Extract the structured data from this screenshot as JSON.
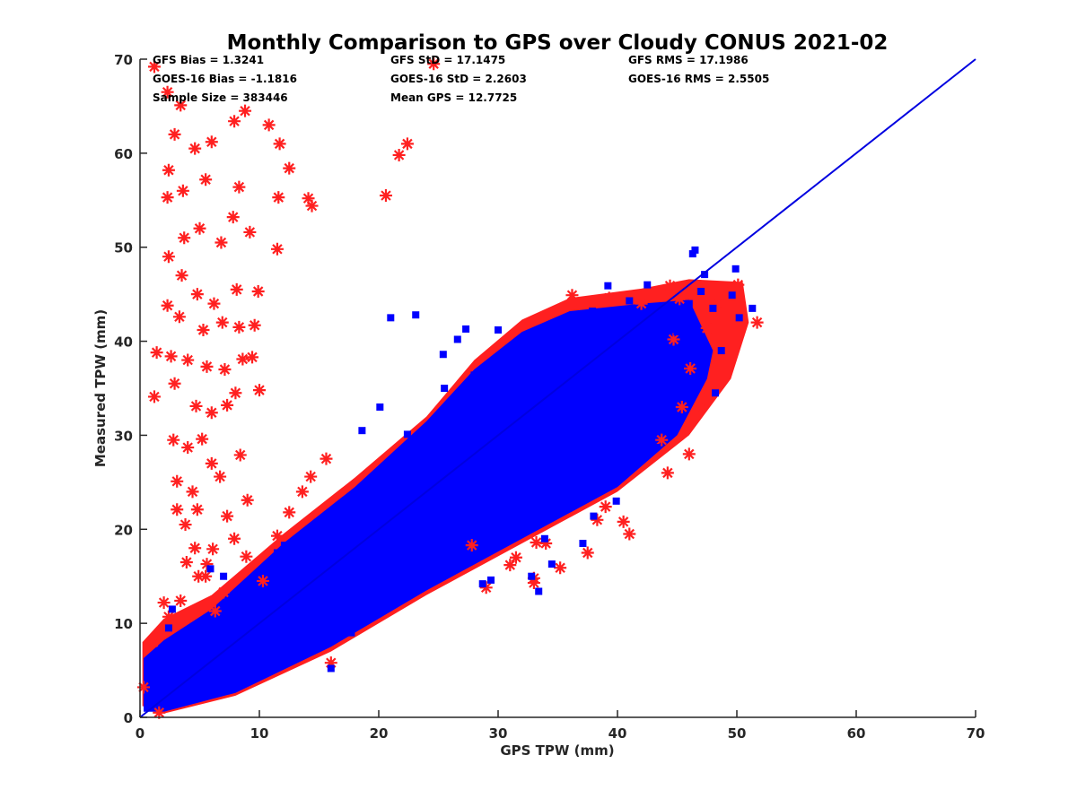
{
  "chart_data": {
    "type": "scatter",
    "title": "Monthly Comparison to GPS over Cloudy CONUS 2021-02",
    "xlabel": "GPS TPW (mm)",
    "ylabel": "Measured TPW (mm)",
    "xlim": [
      0,
      70
    ],
    "ylim": [
      0,
      70
    ],
    "xticks": [
      0,
      10,
      20,
      30,
      40,
      50,
      60,
      70
    ],
    "yticks": [
      0,
      10,
      20,
      30,
      40,
      50,
      60,
      70
    ],
    "grid": false,
    "reference_line": {
      "name": "",
      "color": "#0000e0",
      "points": [
        [
          0,
          0
        ],
        [
          70,
          70
        ]
      ]
    },
    "stats": [
      "GFS Bias = 1.3241",
      "GFS StD = 17.1475",
      "GFS RMS = 17.1986",
      "GOES-16 Bias = -1.1816",
      "GOES-16 StD = 2.2603",
      "GOES-16 RMS = 2.5505",
      "Sample Size = 383446",
      "Mean GPS = 12.7725"
    ],
    "series": [
      {
        "name": "GFS",
        "marker": "asterisk",
        "color": "#ff2020",
        "points": [
          [
            1.2,
            69.2
          ],
          [
            2.3,
            66.5
          ],
          [
            3.4,
            65.1
          ],
          [
            2.9,
            62.0
          ],
          [
            4.6,
            60.5
          ],
          [
            6.0,
            61.2
          ],
          [
            7.9,
            63.4
          ],
          [
            8.8,
            64.5
          ],
          [
            10.8,
            63.0
          ],
          [
            2.4,
            58.2
          ],
          [
            3.6,
            56.0
          ],
          [
            5.5,
            57.2
          ],
          [
            8.3,
            56.4
          ],
          [
            11.6,
            55.3
          ],
          [
            2.3,
            55.3
          ],
          [
            3.7,
            51.0
          ],
          [
            5.0,
            52.0
          ],
          [
            6.8,
            50.5
          ],
          [
            7.8,
            53.2
          ],
          [
            9.2,
            51.6
          ],
          [
            11.5,
            49.8
          ],
          [
            2.4,
            49.0
          ],
          [
            3.5,
            47.0
          ],
          [
            4.8,
            45.0
          ],
          [
            6.2,
            44.0
          ],
          [
            8.1,
            45.5
          ],
          [
            9.9,
            45.3
          ],
          [
            2.3,
            43.8
          ],
          [
            3.3,
            42.6
          ],
          [
            5.3,
            41.2
          ],
          [
            6.9,
            42.0
          ],
          [
            8.3,
            41.5
          ],
          [
            9.6,
            41.7
          ],
          [
            1.4,
            38.8
          ],
          [
            2.6,
            38.4
          ],
          [
            4.0,
            38.0
          ],
          [
            5.6,
            37.3
          ],
          [
            7.1,
            37.0
          ],
          [
            8.6,
            38.1
          ],
          [
            9.4,
            38.3
          ],
          [
            1.2,
            34.1
          ],
          [
            2.9,
            35.5
          ],
          [
            4.7,
            33.1
          ],
          [
            6.0,
            32.4
          ],
          [
            7.3,
            33.2
          ],
          [
            8.0,
            34.5
          ],
          [
            10.0,
            34.8
          ],
          [
            2.8,
            29.5
          ],
          [
            4.0,
            28.7
          ],
          [
            5.2,
            29.6
          ],
          [
            6.0,
            27.0
          ],
          [
            8.4,
            27.9
          ],
          [
            3.1,
            25.1
          ],
          [
            4.4,
            24.0
          ],
          [
            6.7,
            25.6
          ],
          [
            3.1,
            22.1
          ],
          [
            4.8,
            22.1
          ],
          [
            7.3,
            21.4
          ],
          [
            9.0,
            23.1
          ],
          [
            3.8,
            20.5
          ],
          [
            4.6,
            18.0
          ],
          [
            6.1,
            17.9
          ],
          [
            3.9,
            16.5
          ],
          [
            5.5,
            15.0
          ],
          [
            7.9,
            19.0
          ],
          [
            2.0,
            12.2
          ],
          [
            1.1,
            8.0
          ],
          [
            0.3,
            3.2
          ],
          [
            1.6,
            0.5
          ],
          [
            14.4,
            54.4
          ],
          [
            14.1,
            55.2
          ],
          [
            11.7,
            61.0
          ],
          [
            12.5,
            58.4
          ],
          [
            24.6,
            69.5
          ],
          [
            21.7,
            59.8
          ],
          [
            22.4,
            61.0
          ],
          [
            20.6,
            55.5
          ],
          [
            16.0,
            5.8
          ],
          [
            29.0,
            13.8
          ],
          [
            33.0,
            14.3
          ],
          [
            35.2,
            15.9
          ],
          [
            34.0,
            18.5
          ],
          [
            39.0,
            22.4
          ],
          [
            41.0,
            19.5
          ],
          [
            38.3,
            21.0
          ],
          [
            43.7,
            29.5
          ],
          [
            45.4,
            33.0
          ],
          [
            46.1,
            37.1
          ],
          [
            44.7,
            40.2
          ],
          [
            47.5,
            41.4
          ],
          [
            50.0,
            45.0
          ],
          [
            50.1,
            46.0
          ],
          [
            51.7,
            42.0
          ],
          [
            44.4,
            45.9
          ],
          [
            36.2,
            44.9
          ],
          [
            39.3,
            44.6
          ],
          [
            42.0,
            44.0
          ],
          [
            48.5,
            44.0
          ],
          [
            33.0,
            14.8
          ],
          [
            37.5,
            17.5
          ],
          [
            40.5,
            20.8
          ],
          [
            14.3,
            25.6
          ],
          [
            15.6,
            27.5
          ],
          [
            31.5,
            17.0
          ],
          [
            27.8,
            18.3
          ],
          [
            31.0,
            16.2
          ],
          [
            33.2,
            18.6
          ],
          [
            44.2,
            26.0
          ],
          [
            46.0,
            28.0
          ],
          [
            47.0,
            33.0
          ],
          [
            49.5,
            45.5
          ],
          [
            45.2,
            44.5
          ],
          [
            13.6,
            24.0
          ],
          [
            12.5,
            21.8
          ],
          [
            6.3,
            11.3
          ],
          [
            2.4,
            10.7
          ],
          [
            1.6,
            8.7
          ],
          [
            3.4,
            12.4
          ],
          [
            10.3,
            14.5
          ],
          [
            8.9,
            17.1
          ],
          [
            7.0,
            13.3
          ],
          [
            11.5,
            19.3
          ],
          [
            4.9,
            15.0
          ],
          [
            5.6,
            16.3
          ]
        ]
      },
      {
        "name": "GOES-16",
        "marker": "square",
        "color": "#0000ff",
        "points": [
          [
            23.1,
            42.8
          ],
          [
            26.6,
            40.2
          ],
          [
            27.3,
            41.3
          ],
          [
            30.0,
            41.2
          ],
          [
            25.4,
            38.6
          ],
          [
            37.9,
            43.2
          ],
          [
            39.2,
            45.9
          ],
          [
            41.0,
            44.3
          ],
          [
            42.5,
            46.0
          ],
          [
            46.0,
            44.0
          ],
          [
            47.3,
            47.1
          ],
          [
            46.3,
            49.3
          ],
          [
            46.5,
            49.7
          ],
          [
            49.9,
            47.7
          ],
          [
            48.0,
            43.5
          ],
          [
            49.6,
            44.9
          ],
          [
            50.2,
            42.5
          ],
          [
            51.3,
            43.5
          ],
          [
            48.7,
            39.0
          ],
          [
            45.4,
            38.0
          ],
          [
            48.2,
            34.5
          ],
          [
            45.6,
            34.4
          ],
          [
            44.0,
            31.5
          ],
          [
            43.2,
            28.7
          ],
          [
            39.9,
            23.0
          ],
          [
            38.0,
            21.4
          ],
          [
            37.1,
            18.5
          ],
          [
            34.5,
            16.3
          ],
          [
            32.8,
            15.0
          ],
          [
            33.4,
            13.4
          ],
          [
            28.7,
            14.2
          ],
          [
            29.4,
            14.6
          ],
          [
            25.8,
            18.7
          ],
          [
            28.5,
            17.6
          ],
          [
            20.1,
            14.5
          ],
          [
            16.9,
            11.1
          ],
          [
            16.0,
            5.2
          ],
          [
            17.7,
            9.0
          ],
          [
            14.3,
            9.2
          ],
          [
            21.0,
            42.5
          ],
          [
            33.6,
            29.0
          ],
          [
            35.3,
            30.5
          ],
          [
            40.8,
            30.0
          ],
          [
            38.4,
            28.0
          ],
          [
            42.6,
            35.5
          ],
          [
            40.5,
            33.0
          ],
          [
            18.6,
            30.5
          ],
          [
            22.4,
            30.1
          ],
          [
            11.5,
            17.5
          ],
          [
            12.1,
            18.3
          ],
          [
            7.0,
            15.0
          ],
          [
            5.9,
            15.8
          ],
          [
            2.7,
            11.5
          ],
          [
            2.4,
            9.5
          ],
          [
            45.0,
            41.0
          ],
          [
            44.5,
            38.0
          ],
          [
            44.8,
            34.7
          ],
          [
            22.3,
            27.5
          ],
          [
            35.6,
            23.4
          ],
          [
            33.9,
            19.0
          ],
          [
            31.3,
            22.0
          ],
          [
            43.7,
            43.0
          ],
          [
            47.0,
            45.3
          ],
          [
            28.0,
            36.4
          ],
          [
            30.6,
            37.3
          ],
          [
            25.5,
            35.0
          ],
          [
            20.1,
            33.0
          ],
          [
            28.0,
            31.6
          ],
          [
            36.7,
            39.6
          ],
          [
            41.0,
            39.0
          ]
        ]
      }
    ]
  }
}
